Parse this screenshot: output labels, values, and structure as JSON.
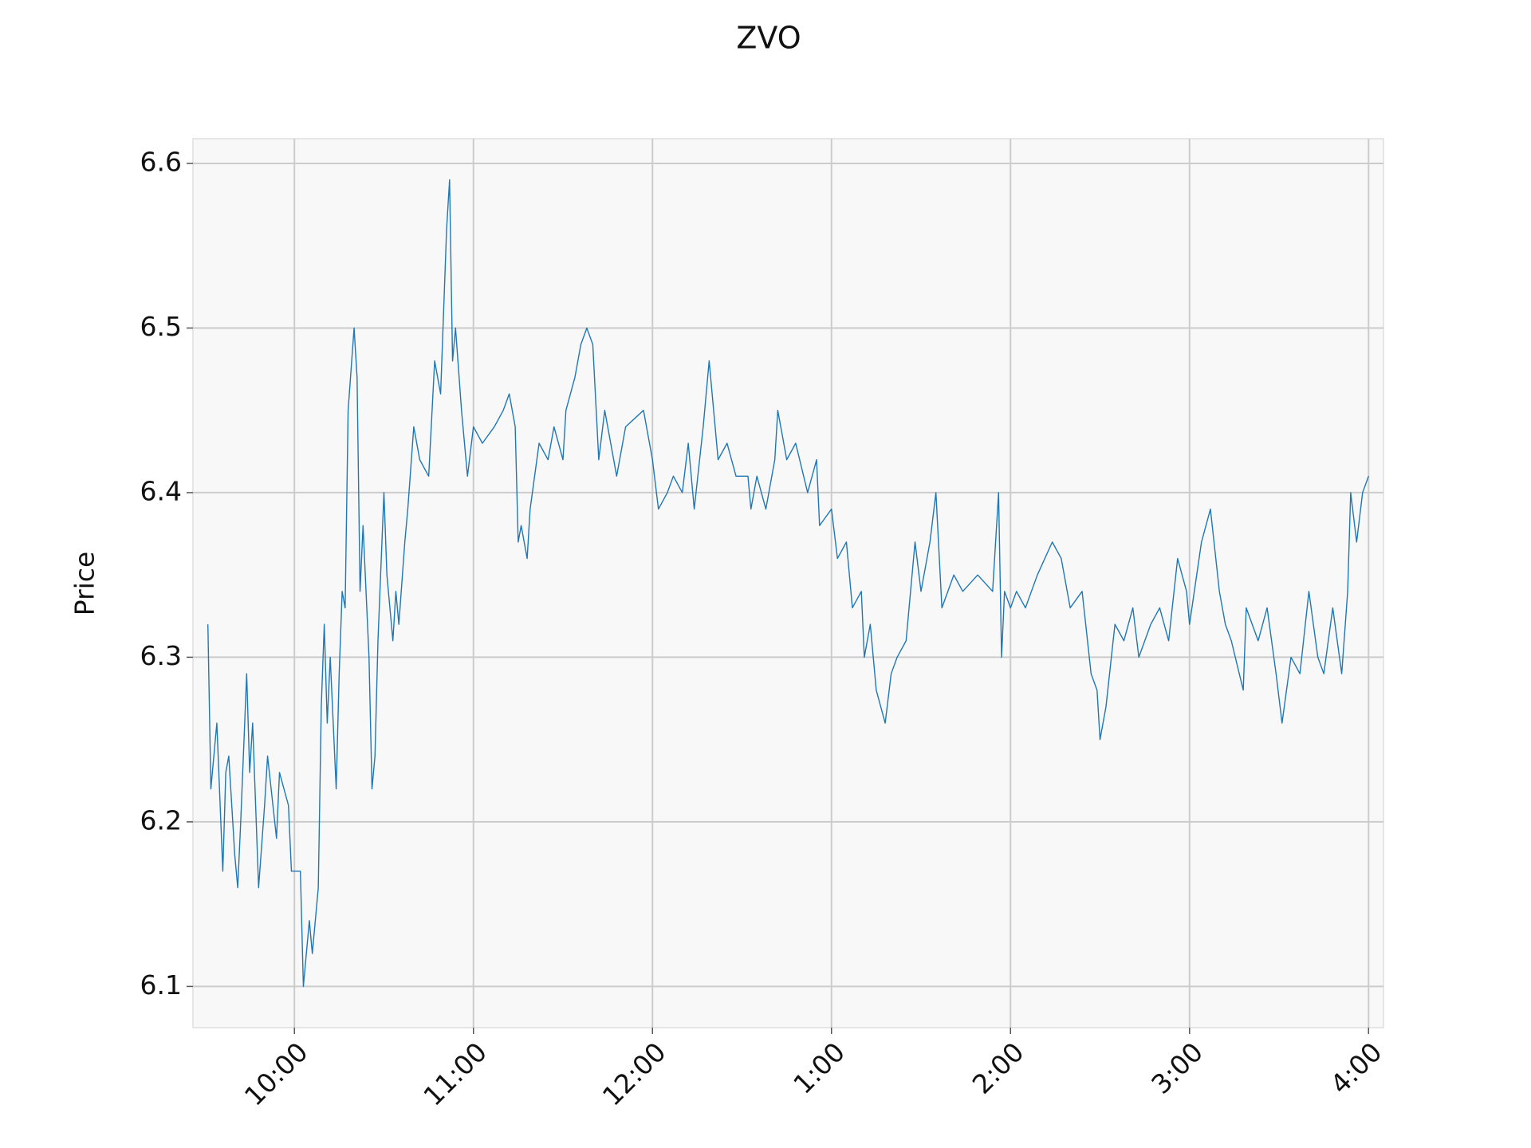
{
  "chart_data": {
    "type": "line",
    "title": "ZVO",
    "ylabel": "Price",
    "color": "#1f77b4",
    "grid": true,
    "x": [
      "09:31",
      "09:32",
      "09:34",
      "09:36",
      "09:37",
      "09:38",
      "09:40",
      "09:41",
      "09:42",
      "09:44",
      "09:45",
      "09:46",
      "09:48",
      "09:50",
      "09:51",
      "09:54",
      "09:55",
      "09:58",
      "09:59",
      "10:02",
      "10:03",
      "10:05",
      "10:06",
      "10:08",
      "10:09",
      "10:10",
      "10:11",
      "10:12",
      "10:14",
      "10:15",
      "10:16",
      "10:17",
      "10:18",
      "10:20",
      "10:21",
      "10:22",
      "10:23",
      "10:25",
      "10:26",
      "10:27",
      "10:28",
      "10:30",
      "10:31",
      "10:33",
      "10:34",
      "10:35",
      "10:37",
      "10:38",
      "10:40",
      "10:42",
      "10:45",
      "10:47",
      "10:49",
      "10:50",
      "10:51",
      "10:52",
      "10:53",
      "10:54",
      "10:56",
      "10:58",
      "11:00",
      "11:03",
      "11:07",
      "11:10",
      "11:12",
      "11:14",
      "11:15",
      "11:16",
      "11:18",
      "11:19",
      "11:22",
      "11:25",
      "11:27",
      "11:30",
      "11:31",
      "11:34",
      "11:36",
      "11:38",
      "11:40",
      "11:42",
      "11:44",
      "11:48",
      "11:51",
      "11:57",
      "12:00",
      "12:02",
      "12:05",
      "12:07",
      "12:10",
      "12:12",
      "12:14",
      "12:17",
      "12:19",
      "12:22",
      "12:25",
      "12:28",
      "12:32",
      "12:33",
      "12:35",
      "12:38",
      "12:41",
      "12:42",
      "12:45",
      "12:48",
      "12:52",
      "12:55",
      "12:56",
      "13:00",
      "13:02",
      "13:05",
      "13:07",
      "13:10",
      "13:11",
      "13:13",
      "13:15",
      "13:18",
      "13:20",
      "13:22",
      "13:25",
      "13:28",
      "13:30",
      "13:33",
      "13:35",
      "13:37",
      "13:41",
      "13:44",
      "13:49",
      "13:54",
      "13:56",
      "13:57",
      "13:58",
      "14:00",
      "14:02",
      "14:05",
      "14:09",
      "14:14",
      "14:17",
      "14:20",
      "14:24",
      "14:27",
      "14:29",
      "14:30",
      "14:32",
      "14:35",
      "14:38",
      "14:41",
      "14:43",
      "14:47",
      "14:50",
      "14:53",
      "14:56",
      "14:59",
      "15:00",
      "15:04",
      "15:07",
      "15:10",
      "15:12",
      "15:14",
      "15:18",
      "15:19",
      "15:23",
      "15:26",
      "15:29",
      "15:31",
      "15:34",
      "15:37",
      "15:40",
      "15:43",
      "15:45",
      "15:48",
      "15:51",
      "15:53",
      "15:54",
      "15:56",
      "15:58",
      "16:00"
    ],
    "values": [
      6.32,
      6.22,
      6.26,
      6.17,
      6.23,
      6.24,
      6.18,
      6.16,
      6.2,
      6.29,
      6.23,
      6.26,
      6.16,
      6.21,
      6.24,
      6.19,
      6.23,
      6.21,
      6.17,
      6.17,
      6.1,
      6.14,
      6.12,
      6.16,
      6.27,
      6.32,
      6.26,
      6.3,
      6.22,
      6.29,
      6.34,
      6.33,
      6.45,
      6.5,
      6.47,
      6.34,
      6.38,
      6.3,
      6.22,
      6.24,
      6.31,
      6.4,
      6.35,
      6.31,
      6.34,
      6.32,
      6.37,
      6.39,
      6.44,
      6.42,
      6.41,
      6.48,
      6.46,
      6.51,
      6.56,
      6.59,
      6.48,
      6.5,
      6.45,
      6.41,
      6.44,
      6.43,
      6.44,
      6.45,
      6.46,
      6.44,
      6.37,
      6.38,
      6.36,
      6.39,
      6.43,
      6.42,
      6.44,
      6.42,
      6.45,
      6.47,
      6.49,
      6.5,
      6.49,
      6.42,
      6.45,
      6.41,
      6.44,
      6.45,
      6.42,
      6.39,
      6.4,
      6.41,
      6.4,
      6.43,
      6.39,
      6.44,
      6.48,
      6.42,
      6.43,
      6.41,
      6.41,
      6.39,
      6.41,
      6.39,
      6.42,
      6.45,
      6.42,
      6.43,
      6.4,
      6.42,
      6.38,
      6.39,
      6.36,
      6.37,
      6.33,
      6.34,
      6.3,
      6.32,
      6.28,
      6.26,
      6.29,
      6.3,
      6.31,
      6.37,
      6.34,
      6.37,
      6.4,
      6.33,
      6.35,
      6.34,
      6.35,
      6.34,
      6.4,
      6.3,
      6.34,
      6.33,
      6.34,
      6.33,
      6.35,
      6.37,
      6.36,
      6.33,
      6.34,
      6.29,
      6.28,
      6.25,
      6.27,
      6.32,
      6.31,
      6.33,
      6.3,
      6.32,
      6.33,
      6.31,
      6.36,
      6.34,
      6.32,
      6.37,
      6.39,
      6.34,
      6.32,
      6.31,
      6.28,
      6.33,
      6.31,
      6.33,
      6.29,
      6.26,
      6.3,
      6.29,
      6.34,
      6.3,
      6.29,
      6.33,
      6.29,
      6.34,
      6.4,
      6.37,
      6.4,
      6.41
    ],
    "xlim": [
      "09:26",
      "16:05"
    ],
    "xticks": [
      {
        "value": "10:00",
        "label": "10:00"
      },
      {
        "value": "11:00",
        "label": "11:00"
      },
      {
        "value": "12:00",
        "label": "12:00"
      },
      {
        "value": "13:00",
        "label": "1:00"
      },
      {
        "value": "14:00",
        "label": "2:00"
      },
      {
        "value": "15:00",
        "label": "3:00"
      },
      {
        "value": "16:00",
        "label": "4:00"
      }
    ],
    "ylim": [
      6.075,
      6.615
    ],
    "yticks": [
      6.1,
      6.2,
      6.3,
      6.4,
      6.5,
      6.6
    ]
  }
}
